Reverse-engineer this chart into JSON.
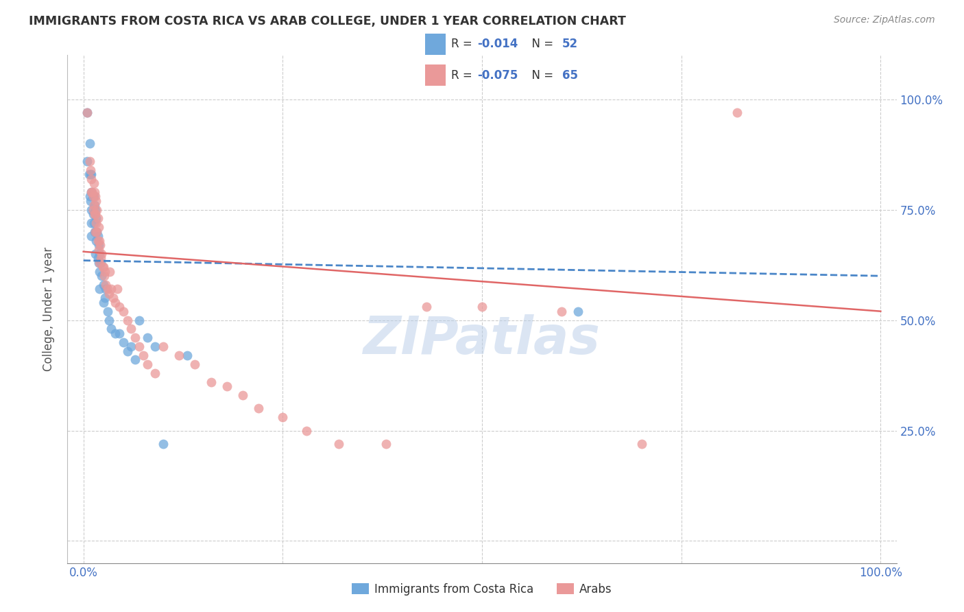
{
  "title": "IMMIGRANTS FROM COSTA RICA VS ARAB COLLEGE, UNDER 1 YEAR CORRELATION CHART",
  "source": "Source: ZipAtlas.com",
  "ylabel": "College, Under 1 year",
  "legend_label1": "Immigrants from Costa Rica",
  "legend_label2": "Arabs",
  "blue_color": "#6fa8dc",
  "pink_color": "#ea9999",
  "blue_line_color": "#4a86c8",
  "pink_line_color": "#e06666",
  "watermark": "ZIPatlas",
  "blue_scatter_x": [
    0.005,
    0.005,
    0.007,
    0.008,
    0.008,
    0.009,
    0.009,
    0.01,
    0.01,
    0.01,
    0.01,
    0.01,
    0.012,
    0.012,
    0.013,
    0.013,
    0.014,
    0.014,
    0.015,
    0.015,
    0.015,
    0.016,
    0.016,
    0.017,
    0.018,
    0.018,
    0.019,
    0.019,
    0.02,
    0.02,
    0.02,
    0.022,
    0.023,
    0.025,
    0.025,
    0.027,
    0.028,
    0.03,
    0.032,
    0.035,
    0.04,
    0.045,
    0.05,
    0.055,
    0.06,
    0.065,
    0.07,
    0.08,
    0.09,
    0.1,
    0.13,
    0.62
  ],
  "blue_scatter_y": [
    0.97,
    0.86,
    0.83,
    0.9,
    0.78,
    0.83,
    0.77,
    0.83,
    0.79,
    0.75,
    0.72,
    0.69,
    0.78,
    0.74,
    0.78,
    0.72,
    0.76,
    0.7,
    0.75,
    0.7,
    0.65,
    0.73,
    0.68,
    0.7,
    0.69,
    0.64,
    0.67,
    0.63,
    0.65,
    0.61,
    0.57,
    0.63,
    0.6,
    0.58,
    0.54,
    0.55,
    0.57,
    0.52,
    0.5,
    0.48,
    0.47,
    0.47,
    0.45,
    0.43,
    0.44,
    0.41,
    0.5,
    0.46,
    0.44,
    0.22,
    0.42,
    0.52
  ],
  "pink_scatter_x": [
    0.005,
    0.008,
    0.009,
    0.01,
    0.01,
    0.011,
    0.012,
    0.012,
    0.013,
    0.013,
    0.014,
    0.014,
    0.015,
    0.015,
    0.015,
    0.016,
    0.016,
    0.017,
    0.017,
    0.018,
    0.018,
    0.019,
    0.019,
    0.02,
    0.02,
    0.021,
    0.022,
    0.023,
    0.024,
    0.025,
    0.026,
    0.027,
    0.028,
    0.03,
    0.032,
    0.033,
    0.035,
    0.037,
    0.04,
    0.042,
    0.045,
    0.05,
    0.055,
    0.06,
    0.065,
    0.07,
    0.075,
    0.08,
    0.09,
    0.1,
    0.12,
    0.14,
    0.16,
    0.18,
    0.2,
    0.22,
    0.25,
    0.28,
    0.32,
    0.38,
    0.43,
    0.5,
    0.6,
    0.7,
    0.82
  ],
  "pink_scatter_y": [
    0.97,
    0.86,
    0.84,
    0.82,
    0.79,
    0.79,
    0.78,
    0.75,
    0.81,
    0.76,
    0.79,
    0.74,
    0.78,
    0.74,
    0.7,
    0.77,
    0.72,
    0.75,
    0.7,
    0.73,
    0.68,
    0.71,
    0.66,
    0.68,
    0.63,
    0.67,
    0.64,
    0.65,
    0.62,
    0.62,
    0.6,
    0.61,
    0.58,
    0.57,
    0.56,
    0.61,
    0.57,
    0.55,
    0.54,
    0.57,
    0.53,
    0.52,
    0.5,
    0.48,
    0.46,
    0.44,
    0.42,
    0.4,
    0.38,
    0.44,
    0.42,
    0.4,
    0.36,
    0.35,
    0.33,
    0.3,
    0.28,
    0.25,
    0.22,
    0.22,
    0.53,
    0.53,
    0.52,
    0.22,
    0.97
  ]
}
